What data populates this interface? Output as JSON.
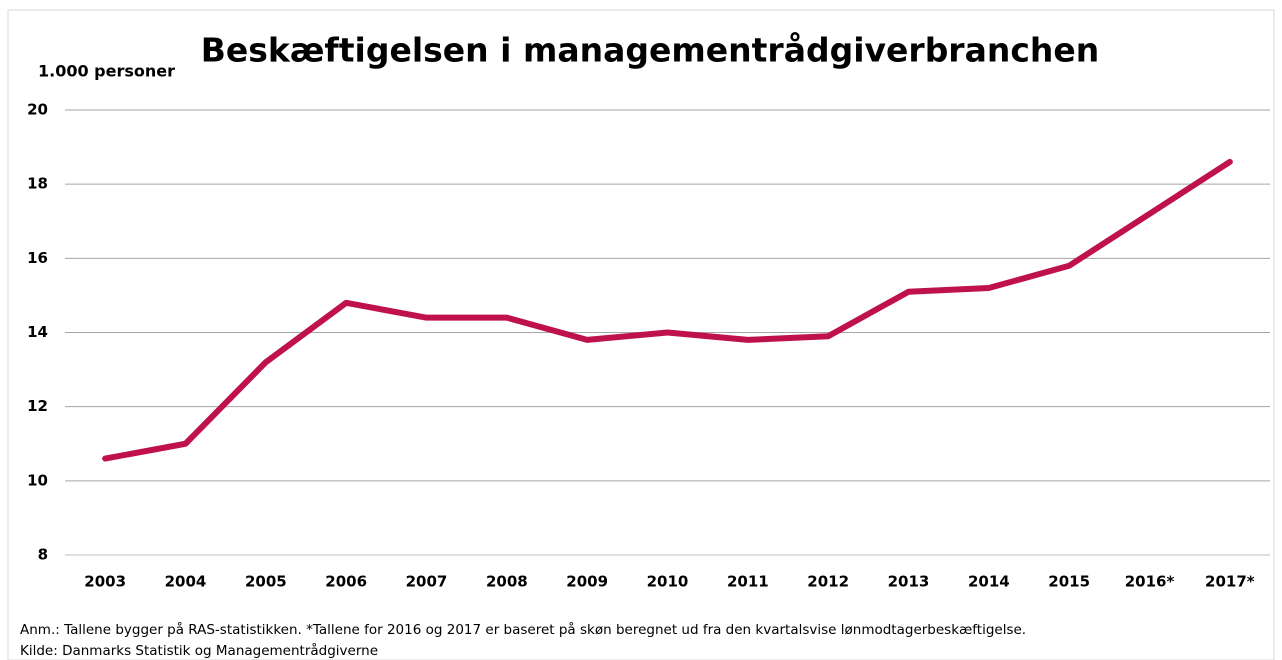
{
  "chart_data": {
    "type": "line",
    "title": "Beskæftigelsen i managementrådgiverbranchen",
    "y_label": "1.000 personer",
    "categories": [
      "2003",
      "2004",
      "2005",
      "2006",
      "2007",
      "2008",
      "2009",
      "2010",
      "2011",
      "2012",
      "2013",
      "2014",
      "2015",
      "2016*",
      "2017*"
    ],
    "values": [
      10.6,
      11.0,
      13.2,
      14.8,
      14.4,
      14.4,
      13.8,
      14.0,
      13.8,
      13.9,
      15.1,
      15.2,
      15.8,
      17.2,
      18.6
    ],
    "color": "#c0124a",
    "ylim": [
      8,
      20
    ],
    "yticks": [
      8,
      10,
      12,
      14,
      16,
      18,
      20
    ],
    "grid": true,
    "notes": [
      "Anm.: Tallene bygger på RAS-statistikken.  *Tallene for 2016 og 2017 er baseret på skøn beregnet ud fra den kvartalsvise lønmodtagerbeskæftigelse.",
      "Kilde: Danmarks Statistik og Managementrådgiverne"
    ]
  }
}
